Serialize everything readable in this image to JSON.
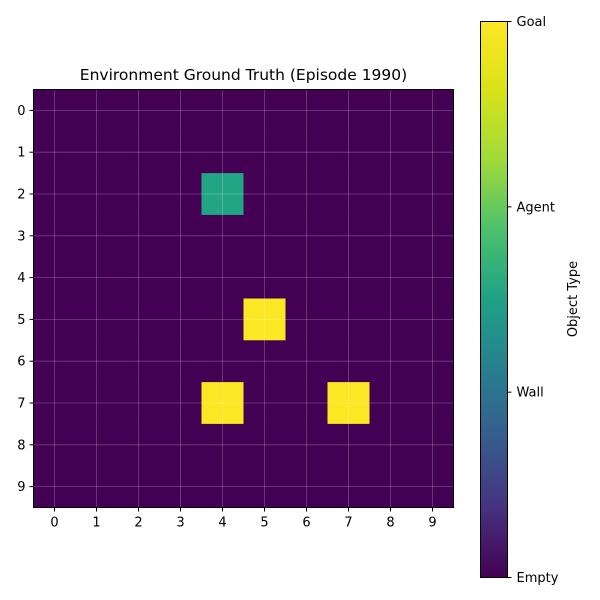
{
  "chart_data": {
    "type": "heatmap",
    "title": "Environment Ground Truth (Episode 1990)",
    "x_ticks": [
      "0",
      "1",
      "2",
      "3",
      "4",
      "5",
      "6",
      "7",
      "8",
      "9"
    ],
    "y_ticks": [
      "0",
      "1",
      "2",
      "3",
      "4",
      "5",
      "6",
      "7",
      "8",
      "9"
    ],
    "grid": true,
    "colormap": "viridis",
    "value_range": [
      0,
      3
    ],
    "grid_values": [
      [
        0,
        0,
        0,
        0,
        0,
        0,
        0,
        0,
        0,
        0
      ],
      [
        0,
        0,
        0,
        0,
        0,
        0,
        0,
        0,
        0,
        0
      ],
      [
        0,
        0,
        0,
        0,
        2,
        0,
        0,
        0,
        0,
        0
      ],
      [
        0,
        0,
        0,
        0,
        0,
        0,
        0,
        0,
        0,
        0
      ],
      [
        0,
        0,
        0,
        0,
        0,
        0,
        0,
        0,
        0,
        0
      ],
      [
        0,
        0,
        0,
        0,
        0,
        3,
        0,
        0,
        0,
        0
      ],
      [
        0,
        0,
        0,
        0,
        0,
        0,
        0,
        0,
        0,
        0
      ],
      [
        0,
        0,
        0,
        0,
        3,
        0,
        0,
        3,
        0,
        0
      ],
      [
        0,
        0,
        0,
        0,
        0,
        0,
        0,
        0,
        0,
        0
      ],
      [
        0,
        0,
        0,
        0,
        0,
        0,
        0,
        0,
        0,
        0
      ]
    ],
    "colorbar": {
      "label": "Object Type",
      "ticks": [
        {
          "value": 0,
          "label": "Empty"
        },
        {
          "value": 1,
          "label": "Wall"
        },
        {
          "value": 2,
          "label": "Agent"
        },
        {
          "value": 3,
          "label": "Goal"
        }
      ]
    },
    "colors": {
      "empty": "#440154",
      "agent": "#21a585",
      "goal": "#fde725"
    }
  }
}
